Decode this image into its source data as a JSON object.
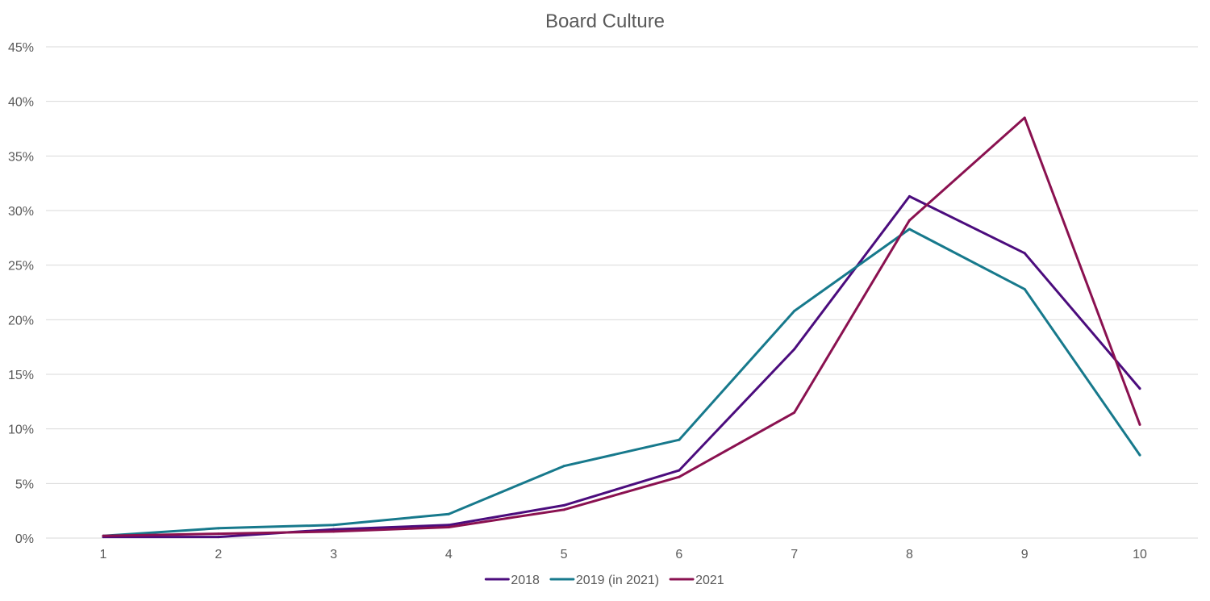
{
  "chart_data": {
    "type": "line",
    "title": "Board Culture",
    "xlabel": "",
    "ylabel": "",
    "categories": [
      "1",
      "2",
      "3",
      "4",
      "5",
      "6",
      "7",
      "8",
      "9",
      "10"
    ],
    "y_ticks": [
      "0%",
      "5%",
      "10%",
      "15%",
      "20%",
      "25%",
      "30%",
      "35%",
      "40%",
      "45%"
    ],
    "ylim": [
      0,
      45
    ],
    "y_unit": "%",
    "grid": true,
    "legend_position": "bottom",
    "series": [
      {
        "name": "2018",
        "color": "#4b0c7d",
        "values": [
          0.1,
          0.1,
          0.8,
          1.2,
          3.0,
          6.2,
          17.3,
          31.3,
          26.1,
          13.7
        ]
      },
      {
        "name": "2019 (in 2021)",
        "color": "#17798c",
        "values": [
          0.2,
          0.9,
          1.2,
          2.2,
          6.6,
          9.0,
          20.8,
          28.3,
          22.8,
          7.6
        ]
      },
      {
        "name": "2021",
        "color": "#8a1150",
        "values": [
          0.2,
          0.4,
          0.6,
          1.0,
          2.6,
          5.6,
          11.5,
          29.1,
          38.5,
          10.4
        ]
      }
    ]
  }
}
